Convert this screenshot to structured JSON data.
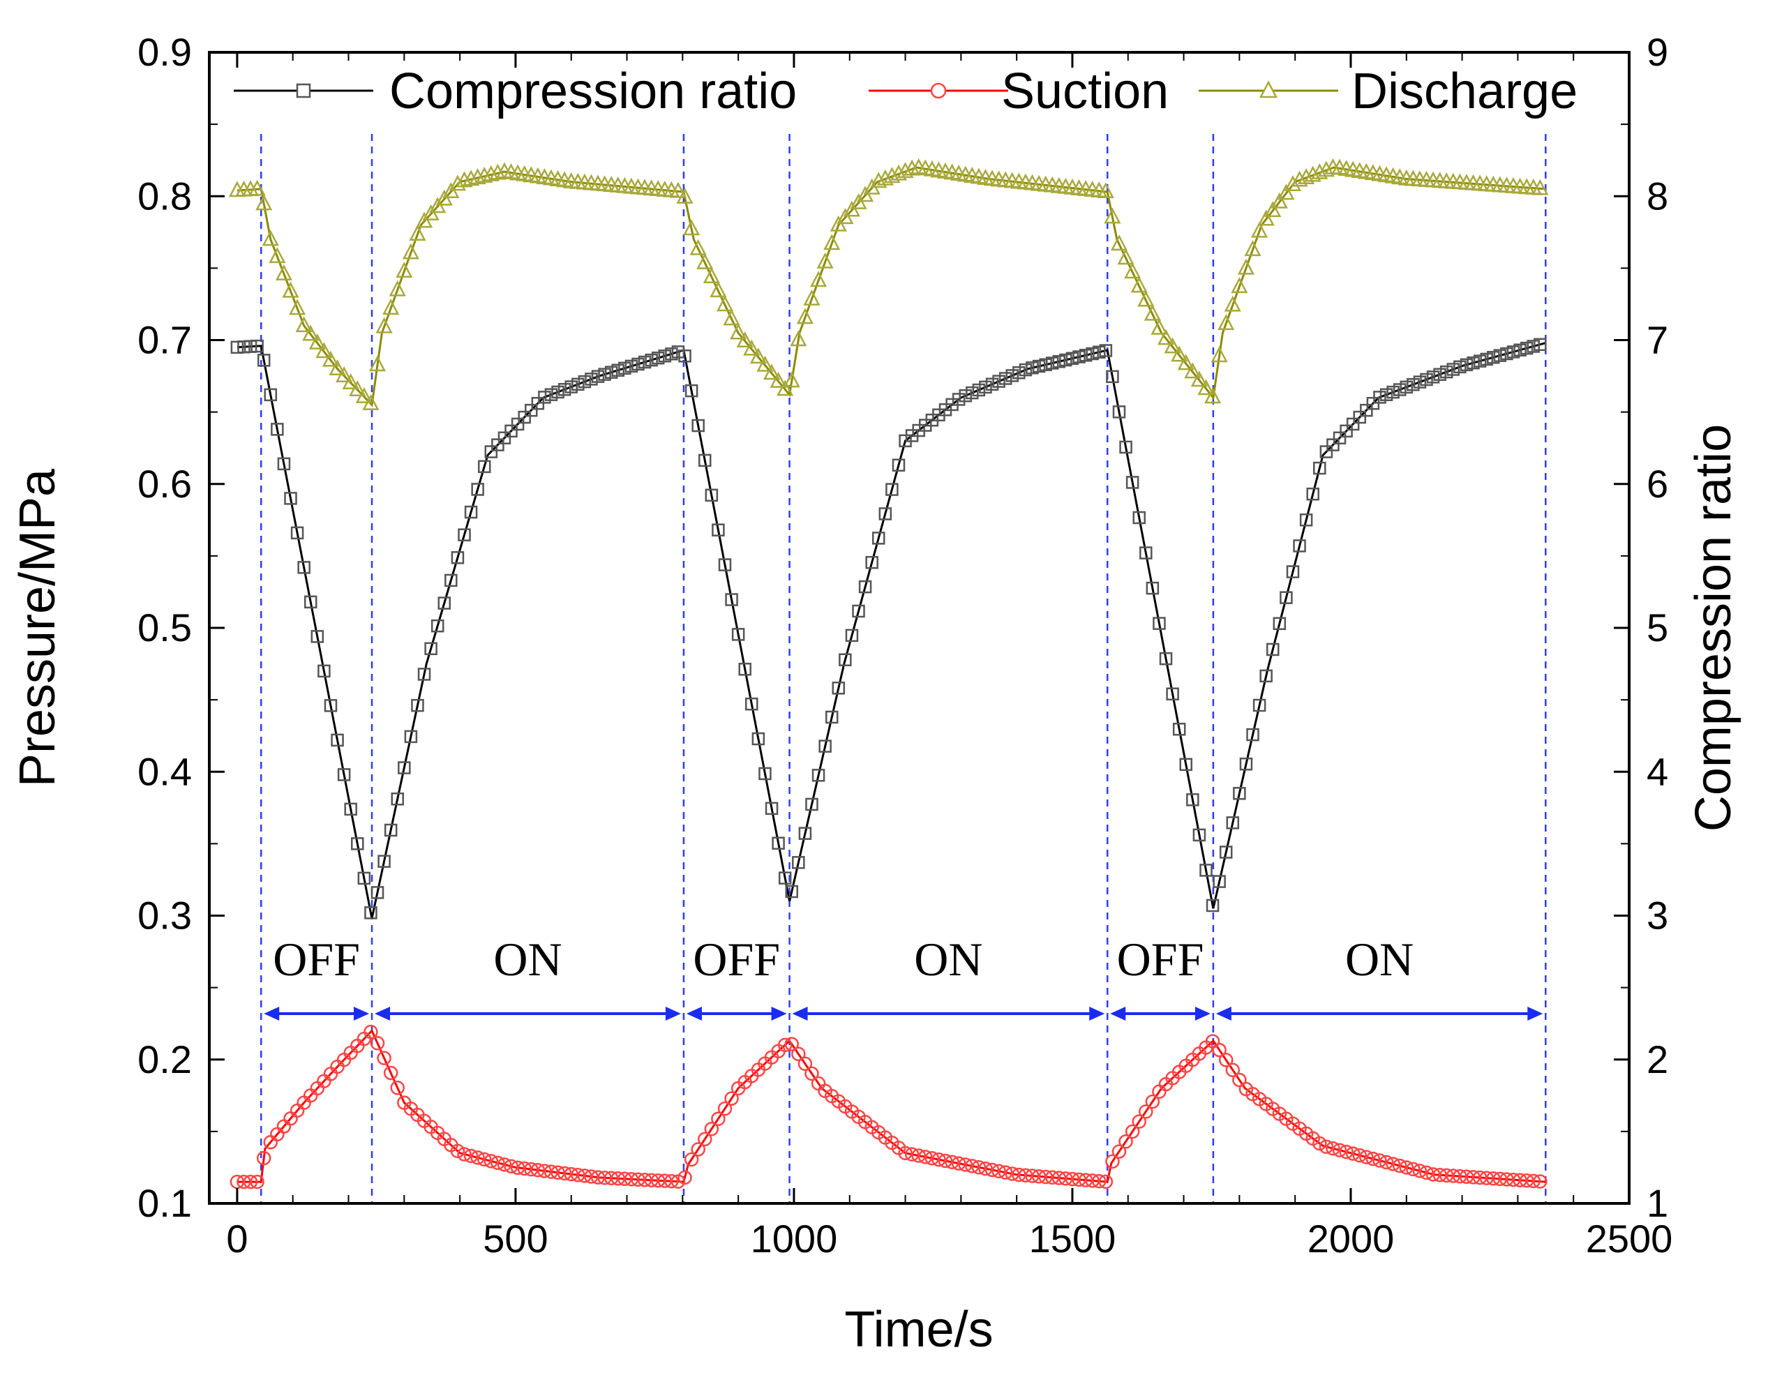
{
  "chart_data": {
    "type": "line",
    "title": "",
    "xlabel": "Time/s",
    "ylabel_left": "Pressure/MPa",
    "ylabel_right": "Compression ratio",
    "xlim": [
      -50,
      2500
    ],
    "ylim_left": [
      0.1,
      0.9
    ],
    "ylim_right": [
      1,
      9
    ],
    "grid": false,
    "legend_position": "top",
    "x_ticks": [
      "0",
      "500",
      "1000",
      "1500",
      "2000",
      "2500"
    ],
    "y_left_ticks": [
      "0.1",
      "0.2",
      "0.3",
      "0.4",
      "0.5",
      "0.6",
      "0.7",
      "0.8",
      "0.9"
    ],
    "y_right_ticks": [
      "1",
      "2",
      "3",
      "4",
      "5",
      "6",
      "7",
      "8",
      "9"
    ],
    "phase_boundaries": [
      43,
      242,
      802,
      992,
      1563,
      1753,
      2350
    ],
    "phases": [
      {
        "label": "OFF",
        "start": 43,
        "end": 242
      },
      {
        "label": "ON",
        "start": 242,
        "end": 802
      },
      {
        "label": "OFF",
        "start": 802,
        "end": 992
      },
      {
        "label": "ON",
        "start": 992,
        "end": 1563
      },
      {
        "label": "OFF",
        "start": 1563,
        "end": 1753
      },
      {
        "label": "ON",
        "start": 1753,
        "end": 2350
      }
    ],
    "series": [
      {
        "name": "Compression ratio",
        "axis": "right",
        "color": "#000000",
        "marker": "square",
        "marker_color": "#555555",
        "points": [
          [
            0,
            6.95
          ],
          [
            43,
            6.96
          ],
          [
            242,
            2.98
          ],
          [
            340,
            4.75
          ],
          [
            450,
            6.2
          ],
          [
            550,
            6.6
          ],
          [
            650,
            6.75
          ],
          [
            802,
            6.93
          ],
          [
            992,
            3.1
          ],
          [
            1090,
            4.75
          ],
          [
            1200,
            6.3
          ],
          [
            1300,
            6.6
          ],
          [
            1420,
            6.8
          ],
          [
            1563,
            6.93
          ],
          [
            1753,
            3.05
          ],
          [
            1850,
            4.7
          ],
          [
            1950,
            6.2
          ],
          [
            2050,
            6.6
          ],
          [
            2200,
            6.82
          ],
          [
            2350,
            6.98
          ]
        ]
      },
      {
        "name": "Suction",
        "axis": "left",
        "color": "#ff0000",
        "marker": "circle",
        "marker_color": "#ff4444",
        "points": [
          [
            0,
            0.115
          ],
          [
            43,
            0.115
          ],
          [
            50,
            0.138
          ],
          [
            120,
            0.17
          ],
          [
            180,
            0.195
          ],
          [
            242,
            0.22
          ],
          [
            300,
            0.17
          ],
          [
            400,
            0.135
          ],
          [
            500,
            0.125
          ],
          [
            650,
            0.118
          ],
          [
            802,
            0.115
          ],
          [
            810,
            0.127
          ],
          [
            900,
            0.18
          ],
          [
            992,
            0.213
          ],
          [
            1050,
            0.18
          ],
          [
            1200,
            0.135
          ],
          [
            1400,
            0.12
          ],
          [
            1563,
            0.115
          ],
          [
            1570,
            0.128
          ],
          [
            1660,
            0.18
          ],
          [
            1753,
            0.213
          ],
          [
            1810,
            0.18
          ],
          [
            1950,
            0.14
          ],
          [
            2150,
            0.12
          ],
          [
            2350,
            0.115
          ]
        ]
      },
      {
        "name": "Discharge",
        "axis": "left",
        "color": "#8b8b00",
        "marker": "triangle",
        "marker_color": "#a8a83a",
        "points": [
          [
            0,
            0.804
          ],
          [
            43,
            0.805
          ],
          [
            60,
            0.77
          ],
          [
            120,
            0.71
          ],
          [
            180,
            0.68
          ],
          [
            242,
            0.655
          ],
          [
            260,
            0.705
          ],
          [
            330,
            0.78
          ],
          [
            400,
            0.81
          ],
          [
            480,
            0.817
          ],
          [
            600,
            0.81
          ],
          [
            802,
            0.803
          ],
          [
            820,
            0.77
          ],
          [
            900,
            0.705
          ],
          [
            992,
            0.662
          ],
          [
            1010,
            0.705
          ],
          [
            1080,
            0.78
          ],
          [
            1150,
            0.81
          ],
          [
            1220,
            0.82
          ],
          [
            1350,
            0.812
          ],
          [
            1563,
            0.803
          ],
          [
            1580,
            0.77
          ],
          [
            1660,
            0.705
          ],
          [
            1753,
            0.66
          ],
          [
            1770,
            0.705
          ],
          [
            1840,
            0.78
          ],
          [
            1900,
            0.81
          ],
          [
            1970,
            0.82
          ],
          [
            2100,
            0.812
          ],
          [
            2350,
            0.805
          ]
        ]
      }
    ]
  }
}
